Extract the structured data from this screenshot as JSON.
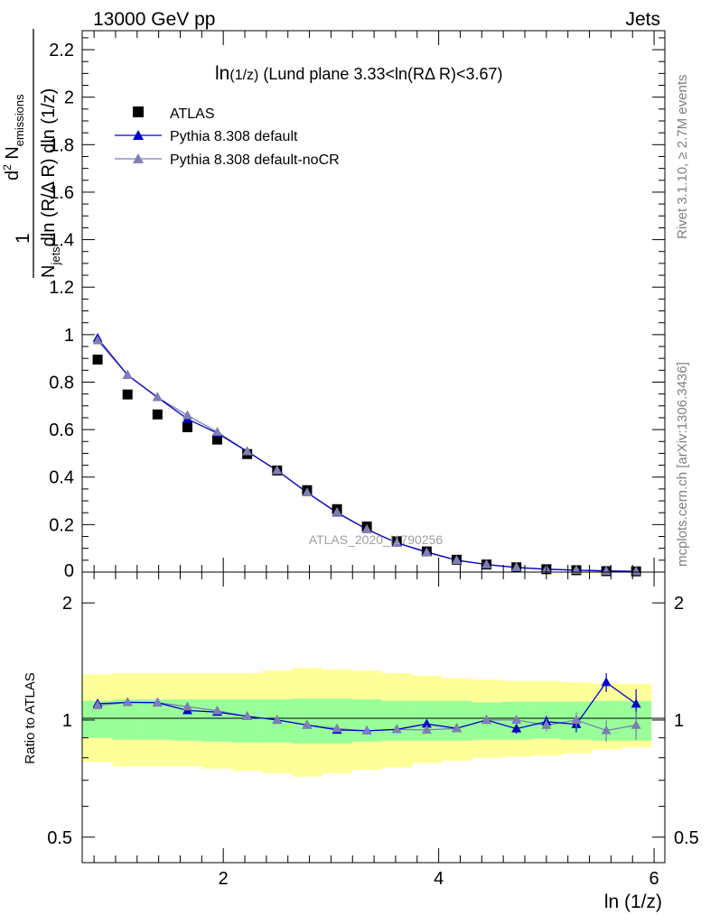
{
  "header": {
    "left": "13000 GeV pp",
    "right": "Jets"
  },
  "side_labels": {
    "rivet": "Rivet 3.1.10, ≥ 2.7M events",
    "mcplots": "mcplots.cern.ch [arXiv:1306.3436]"
  },
  "watermark": "ATLAS_2020_I1790256",
  "colors": {
    "data": "#000000",
    "default": "#0000cc",
    "nocr": "#7f7fb3",
    "band_inner": "#99ff99",
    "band_outer": "#ffff99"
  },
  "chart_data": [
    {
      "type": "scatter",
      "title_main": "ln",
      "title_sub": "(1/z)",
      "title_rest": " (Lund plane 3.33<ln(RΔ R)<3.67)",
      "ylabel": "1/N_jets d²N_emissions / dln(R/ΔR) dln(1/z)",
      "xlabel": "ln (1/z)",
      "xlim": [
        0.69,
        6.1
      ],
      "ylim": [
        0,
        2.28
      ],
      "x_ticks": [
        "2",
        "4",
        "6"
      ],
      "y_ticks": [
        "0.2",
        "0.4",
        "0.6",
        "0.8",
        "1",
        "1.2",
        "1.4",
        "1.6",
        "1.8",
        "2",
        "2.2"
      ],
      "legend": [
        "ATLAS",
        "Pythia 8.308 default",
        "Pythia 8.308 default-noCR"
      ],
      "x": [
        0.833,
        1.111,
        1.389,
        1.667,
        1.944,
        2.222,
        2.5,
        2.778,
        3.056,
        3.333,
        3.611,
        3.889,
        4.167,
        4.444,
        4.722,
        5.0,
        5.278,
        5.556,
        5.833
      ],
      "series": [
        {
          "name": "ATLAS",
          "values": [
            0.895,
            0.748,
            0.664,
            0.61,
            0.558,
            0.497,
            0.428,
            0.345,
            0.265,
            0.192,
            0.13,
            0.087,
            0.052,
            0.032,
            0.02,
            0.012,
            0.008,
            0.004,
            0.003
          ]
        },
        {
          "name": "Pythia 8.308 default",
          "values": [
            0.985,
            0.83,
            0.736,
            0.645,
            0.585,
            0.508,
            0.428,
            0.335,
            0.25,
            0.18,
            0.123,
            0.085,
            0.05,
            0.032,
            0.019,
            0.012,
            0.008,
            0.005,
            0.0033
          ]
        },
        {
          "name": "Pythia 8.308 default-noCR",
          "values": [
            0.975,
            0.83,
            0.736,
            0.66,
            0.59,
            0.508,
            0.428,
            0.335,
            0.252,
            0.18,
            0.123,
            0.082,
            0.05,
            0.032,
            0.02,
            0.012,
            0.008,
            0.004,
            0.003
          ]
        }
      ]
    },
    {
      "type": "line",
      "ylabel": "Ratio to ATLAS",
      "ylim": [
        0.43,
        2.4
      ],
      "y_scale": "log",
      "y_ticks": [
        "0.5",
        "1",
        "2"
      ],
      "x": [
        0.833,
        1.111,
        1.389,
        1.667,
        1.944,
        2.222,
        2.5,
        2.778,
        3.056,
        3.333,
        3.611,
        3.889,
        4.167,
        4.444,
        4.722,
        5.0,
        5.278,
        5.556,
        5.833
      ],
      "band_inner": {
        "lo": [
          0.9,
          0.89,
          0.89,
          0.885,
          0.88,
          0.875,
          0.875,
          0.87,
          0.87,
          0.88,
          0.885,
          0.885,
          0.885,
          0.89,
          0.89,
          0.895,
          0.89,
          0.885,
          0.885
        ],
        "hi": [
          1.12,
          1.13,
          1.13,
          1.13,
          1.13,
          1.13,
          1.13,
          1.135,
          1.135,
          1.13,
          1.12,
          1.12,
          1.12,
          1.11,
          1.115,
          1.115,
          1.115,
          1.12,
          1.12
        ]
      },
      "band_outer": {
        "lo": [
          0.78,
          0.76,
          0.76,
          0.76,
          0.75,
          0.74,
          0.73,
          0.715,
          0.73,
          0.745,
          0.755,
          0.775,
          0.785,
          0.8,
          0.805,
          0.81,
          0.82,
          0.84,
          0.85
        ],
        "hi": [
          1.31,
          1.32,
          1.32,
          1.32,
          1.32,
          1.32,
          1.34,
          1.36,
          1.35,
          1.34,
          1.32,
          1.3,
          1.28,
          1.27,
          1.26,
          1.26,
          1.25,
          1.24,
          1.24
        ]
      },
      "series": [
        {
          "name": "Pythia 8.308 default",
          "values": [
            1.101,
            1.11,
            1.108,
            1.058,
            1.048,
            1.022,
            1.0,
            0.971,
            0.943,
            0.938,
            0.946,
            0.977,
            0.952,
            1.0,
            0.95,
            0.99,
            0.975,
            1.25,
            1.1
          ],
          "err": [
            0.012,
            0.012,
            0.012,
            0.012,
            0.012,
            0.012,
            0.012,
            0.012,
            0.014,
            0.014,
            0.016,
            0.018,
            0.02,
            0.024,
            0.028,
            0.035,
            0.045,
            0.07,
            0.1
          ]
        },
        {
          "name": "Pythia 8.308 default-noCR",
          "values": [
            1.09,
            1.11,
            1.108,
            1.082,
            1.057,
            1.022,
            1.0,
            0.971,
            0.951,
            0.938,
            0.946,
            0.943,
            0.952,
            1.0,
            1.0,
            0.97,
            1.0,
            0.94,
            0.97
          ],
          "err": [
            0.012,
            0.012,
            0.012,
            0.012,
            0.012,
            0.012,
            0.012,
            0.012,
            0.014,
            0.014,
            0.016,
            0.018,
            0.02,
            0.024,
            0.028,
            0.035,
            0.045,
            0.06,
            0.08
          ]
        }
      ]
    }
  ]
}
